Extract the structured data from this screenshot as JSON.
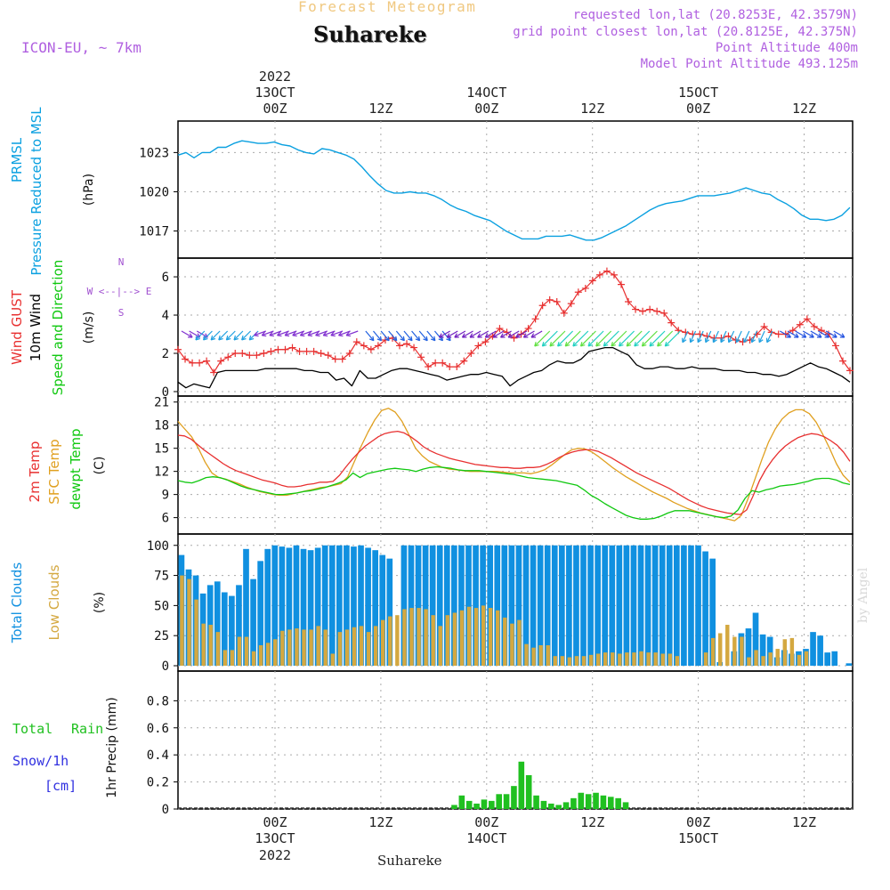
{
  "header": {
    "title": "Forecast Meteogram",
    "location": "Suhareke",
    "model": "ICON-EU, ~ 7km",
    "requested": "requested lon,lat (20.8253E, 42.3579N)",
    "gridpoint": "grid point closest lon,lat (20.8125E, 42.375N)",
    "point_alt": "Point Altitude 400m",
    "model_alt": "Model Point Altitude 493.125m",
    "watermark": "by Angel",
    "footer": "Suhareke"
  },
  "colors": {
    "pressure": "#0aa0e0",
    "gust": "#e83030",
    "wind": "#000000",
    "temp2m": "#e83030",
    "sfc": "#e0a020",
    "dewpt": "#10c810",
    "total_cloud": "#1090e0",
    "low_cloud": "#d4a840",
    "rain": "#20c020",
    "snow": "#3030e0",
    "purple": "#a050d0"
  },
  "time_axis": {
    "top_year": "2022",
    "labels": [
      {
        "hour": 36,
        "top": "13OCT",
        "main": "00Z"
      },
      {
        "hour": 48,
        "top": "",
        "main": "12Z"
      },
      {
        "hour": 60,
        "top": "14OCT",
        "main": "00Z"
      },
      {
        "hour": 72,
        "top": "",
        "main": "12Z"
      },
      {
        "hour": 84,
        "top": "15OCT",
        "main": "00Z"
      },
      {
        "hour": 96,
        "top": "",
        "main": "12Z"
      }
    ],
    "hour_start": 25,
    "hour_end": 101.5
  },
  "chart_data": [
    {
      "type": "line",
      "ylabels": [
        "PRMSL",
        "Pressure Reduced to MSL"
      ],
      "unit": "(hPa)",
      "ylim": [
        1015.2,
        1025
      ],
      "yticks": [
        1017,
        1020,
        1023
      ],
      "series": [
        {
          "values": [
            1022.8,
            1023.0,
            1022.6,
            1023.0,
            1023.0,
            1023.4,
            1023.4,
            1023.7,
            1023.9,
            1023.8,
            1023.7,
            1023.7,
            1023.8,
            1023.6,
            1023.5,
            1023.2,
            1023.0,
            1022.9,
            1023.3,
            1023.2,
            1023.0,
            1022.8,
            1022.5,
            1021.9,
            1021.2,
            1020.6,
            1020.1,
            1019.9,
            1019.9,
            1020.0,
            1019.9,
            1019.9,
            1019.7,
            1019.4,
            1019.0,
            1018.7,
            1018.5,
            1018.2,
            1018.0,
            1017.8,
            1017.4,
            1017.0,
            1016.7,
            1016.4,
            1016.4,
            1016.4,
            1016.6,
            1016.6,
            1016.6,
            1016.7,
            1016.5,
            1016.3,
            1016.3,
            1016.5,
            1016.8,
            1017.1,
            1017.4,
            1017.8,
            1018.2,
            1018.6,
            1018.9,
            1019.1,
            1019.2,
            1019.3,
            1019.5,
            1019.7,
            1019.7,
            1019.7,
            1019.8,
            1019.9,
            1020.1,
            1020.3,
            1020.1,
            1019.9,
            1019.8,
            1019.4,
            1019.1,
            1018.7,
            1018.2,
            1017.9,
            1017.9,
            1017.8,
            1017.9,
            1018.2,
            1018.8
          ]
        }
      ]
    },
    {
      "type": "line",
      "ylabels": [
        "Wind GUST",
        "10m Wind",
        "Speed and Direction"
      ],
      "unit": "(m/s)",
      "compass": [
        "N",
        "W <--|--> E",
        "S"
      ],
      "ylim": [
        0,
        6.7
      ],
      "yticks": [
        0,
        2,
        4,
        6
      ],
      "gust": [
        2.2,
        1.7,
        1.5,
        1.5,
        1.6,
        1.0,
        1.6,
        1.8,
        2.0,
        2.0,
        1.9,
        1.9,
        2.0,
        2.1,
        2.2,
        2.2,
        2.3,
        2.1,
        2.1,
        2.1,
        2.0,
        1.9,
        1.7,
        1.7,
        2.0,
        2.6,
        2.4,
        2.2,
        2.4,
        2.7,
        2.8,
        2.4,
        2.5,
        2.3,
        1.8,
        1.3,
        1.5,
        1.5,
        1.3,
        1.3,
        1.6,
        2.0,
        2.4,
        2.6,
        2.9,
        3.3,
        3.1,
        2.8,
        3.0,
        3.3,
        3.8,
        4.5,
        4.8,
        4.7,
        4.1,
        4.6,
        5.2,
        5.4,
        5.8,
        6.1,
        6.3,
        6.1,
        5.6,
        4.7,
        4.3,
        4.2,
        4.3,
        4.2,
        4.1,
        3.6,
        3.2,
        3.1,
        3.0,
        3.0,
        2.9,
        2.8,
        2.8,
        2.9,
        2.7,
        2.6,
        2.7,
        3.0,
        3.4,
        3.1,
        3.0,
        3.0,
        3.2,
        3.5,
        3.8,
        3.4,
        3.2,
        3.0,
        2.4,
        1.6,
        1.1
      ],
      "wind": [
        0.5,
        0.2,
        0.4,
        0.3,
        0.2,
        1.0,
        1.1,
        1.1,
        1.1,
        1.1,
        1.1,
        1.2,
        1.2,
        1.2,
        1.2,
        1.2,
        1.1,
        1.1,
        1.0,
        1.0,
        0.6,
        0.7,
        0.3,
        1.1,
        0.7,
        0.7,
        0.9,
        1.1,
        1.2,
        1.2,
        1.1,
        1.0,
        0.9,
        0.8,
        0.6,
        0.7,
        0.8,
        0.9,
        0.9,
        1.0,
        0.9,
        0.8,
        0.3,
        0.6,
        0.8,
        1.0,
        1.1,
        1.4,
        1.6,
        1.5,
        1.5,
        1.7,
        2.1,
        2.2,
        2.3,
        2.3,
        2.1,
        1.9,
        1.4,
        1.2,
        1.2,
        1.3,
        1.3,
        1.2,
        1.2,
        1.3,
        1.2,
        1.2,
        1.2,
        1.1,
        1.1,
        1.1,
        1.0,
        1.0,
        0.9,
        0.9,
        0.8,
        0.9,
        1.1,
        1.3,
        1.5,
        1.3,
        1.2,
        1.0,
        0.8,
        0.5
      ]
    },
    {
      "type": "line",
      "ylabels": [
        "2m Temp",
        "SFC Temp",
        "dewpt Temp"
      ],
      "unit": "(C)",
      "ylim": [
        4.8,
        21.2
      ],
      "yticks": [
        6,
        9,
        12,
        15,
        18,
        21
      ],
      "t2m": [
        16.7,
        16.6,
        16.2,
        15.5,
        14.8,
        14.2,
        13.6,
        13.0,
        12.5,
        12.1,
        11.8,
        11.5,
        11.2,
        10.9,
        10.7,
        10.5,
        10.2,
        10.0,
        10.0,
        10.1,
        10.3,
        10.4,
        10.6,
        10.6,
        10.7,
        11.5,
        12.6,
        13.6,
        14.5,
        15.3,
        15.9,
        16.5,
        16.9,
        17.1,
        17.2,
        17.0,
        16.5,
        15.9,
        15.2,
        14.7,
        14.3,
        14.0,
        13.7,
        13.5,
        13.3,
        13.1,
        12.9,
        12.8,
        12.7,
        12.6,
        12.5,
        12.5,
        12.4,
        12.4,
        12.5,
        12.5,
        12.6,
        12.9,
        13.3,
        13.8,
        14.2,
        14.5,
        14.7,
        14.8,
        14.8,
        14.6,
        14.2,
        13.8,
        13.3,
        12.8,
        12.3,
        11.8,
        11.4,
        11.0,
        10.6,
        10.2,
        9.8,
        9.3,
        8.8,
        8.3,
        7.9,
        7.5,
        7.2,
        7.0,
        6.8,
        6.6,
        6.5,
        6.4,
        7.0,
        8.8,
        10.8,
        12.3,
        13.5,
        14.5,
        15.3,
        15.9,
        16.4,
        16.7,
        16.9,
        16.8,
        16.5,
        16.0,
        15.4,
        14.5,
        13.3
      ],
      "sfc": [
        18.5,
        17.5,
        16.5,
        15.0,
        13.2,
        11.8,
        11.2,
        11.0,
        10.7,
        10.4,
        10.0,
        9.7,
        9.4,
        9.2,
        9.0,
        8.9,
        8.9,
        9.1,
        9.3,
        9.5,
        9.7,
        9.9,
        10.0,
        10.2,
        10.4,
        11.3,
        13.3,
        15.3,
        17.1,
        18.7,
        19.9,
        20.2,
        19.7,
        18.5,
        16.8,
        15.0,
        14.0,
        13.3,
        12.9,
        12.5,
        12.3,
        12.2,
        12.1,
        12.0,
        12.0,
        12.0,
        12.0,
        12.0,
        11.9,
        11.8,
        11.8,
        11.8,
        11.7,
        11.9,
        12.2,
        12.8,
        13.5,
        14.2,
        14.8,
        15.0,
        14.9,
        14.5,
        13.9,
        13.2,
        12.5,
        11.9,
        11.3,
        10.8,
        10.3,
        9.8,
        9.3,
        8.9,
        8.5,
        8.0,
        7.6,
        7.2,
        6.9,
        6.6,
        6.4,
        6.2,
        6.0,
        5.8,
        5.6,
        6.3,
        8.5,
        11.0,
        13.5,
        15.8,
        17.5,
        18.8,
        19.6,
        20.0,
        20.0,
        19.5,
        18.4,
        16.8,
        15.0,
        13.0,
        11.5,
        10.6
      ],
      "dewpt": [
        10.8,
        10.6,
        10.5,
        10.8,
        11.2,
        11.3,
        11.2,
        10.9,
        10.5,
        10.1,
        9.8,
        9.6,
        9.4,
        9.2,
        9.0,
        9.0,
        9.1,
        9.2,
        9.4,
        9.5,
        9.7,
        9.9,
        10.2,
        10.5,
        10.9,
        11.8,
        11.2,
        11.7,
        11.9,
        12.1,
        12.3,
        12.4,
        12.3,
        12.2,
        12.0,
        12.3,
        12.5,
        12.6,
        12.5,
        12.4,
        12.2,
        12.1,
        12.1,
        12.1,
        12.0,
        11.9,
        11.8,
        11.7,
        11.6,
        11.4,
        11.2,
        11.1,
        11.0,
        10.9,
        10.8,
        10.6,
        10.4,
        10.2,
        9.6,
        8.9,
        8.4,
        7.8,
        7.3,
        6.8,
        6.3,
        6.0,
        5.8,
        5.8,
        5.9,
        6.2,
        6.6,
        6.9,
        6.9,
        6.9,
        6.7,
        6.5,
        6.3,
        6.1,
        6.0,
        6.2,
        7.0,
        8.5,
        9.5,
        9.3,
        9.6,
        9.8,
        10.1,
        10.2,
        10.3,
        10.5,
        10.7,
        11.0,
        11.1,
        11.1,
        10.9,
        10.5,
        10.3
      ],
      "series": [
        {
          "name": "2m Temp"
        },
        {
          "name": "SFC Temp"
        },
        {
          "name": "dewpt Temp"
        }
      ]
    },
    {
      "type": "bar",
      "ylabels": [
        "Total Clouds",
        "Low Clouds"
      ],
      "unit": "(%)",
      "ylim": [
        0,
        105
      ],
      "yticks": [
        0,
        25,
        50,
        75,
        100
      ],
      "total": [
        92,
        80,
        75,
        60,
        67,
        70,
        61,
        58,
        67,
        97,
        72,
        87,
        97,
        100,
        99,
        98,
        100,
        97,
        96,
        98,
        100,
        100,
        100,
        100,
        99,
        100,
        98,
        96,
        92,
        89,
        0,
        100,
        100,
        100,
        100,
        100,
        100,
        100,
        100,
        100,
        100,
        100,
        100,
        100,
        100,
        100,
        100,
        100,
        100,
        100,
        100,
        100,
        100,
        100,
        100,
        100,
        100,
        100,
        100,
        100,
        100,
        100,
        100,
        100,
        100,
        100,
        100,
        100,
        100,
        100,
        100,
        100,
        100,
        95,
        89,
        3,
        0,
        12,
        27,
        31,
        44,
        26,
        24,
        7,
        13,
        10,
        12,
        14,
        28,
        25,
        11,
        12,
        0,
        2
      ],
      "low": [
        75,
        72,
        55,
        35,
        34,
        28,
        13,
        13,
        24,
        24,
        12,
        17,
        19,
        22,
        29,
        30,
        31,
        30,
        30,
        33,
        30,
        10,
        28,
        30,
        32,
        33,
        28,
        33,
        38,
        41,
        42,
        47,
        48,
        48,
        47,
        42,
        33,
        42,
        44,
        46,
        49,
        48,
        50,
        48,
        46,
        40,
        35,
        38,
        18,
        15,
        17,
        17,
        8,
        8,
        7,
        8,
        8,
        9,
        10,
        11,
        11,
        10,
        11,
        11,
        12,
        11,
        11,
        10,
        10,
        8,
        0,
        0,
        0,
        11,
        23,
        27,
        34,
        24,
        24,
        7,
        13,
        8,
        11,
        14,
        22,
        23,
        9,
        12,
        0,
        0
      ]
    },
    {
      "type": "bar",
      "ylabels": [
        "Total",
        "Rain",
        "Snow/1h",
        "[cm]"
      ],
      "unit": "1hr Precip (mm)",
      "ylim": [
        0,
        0.98
      ],
      "yticks": [
        0,
        0.2,
        0.4,
        0.6,
        0.8
      ],
      "start_hour": 56,
      "rain": [
        0.03,
        0.1,
        0.06,
        0.04,
        0.07,
        0.06,
        0.11,
        0.11,
        0.17,
        0.35,
        0.25,
        0.1,
        0.06,
        0.04,
        0.03,
        0.05,
        0.08,
        0.12,
        0.11,
        0.12,
        0.1,
        0.09,
        0.08,
        0.05
      ]
    }
  ]
}
